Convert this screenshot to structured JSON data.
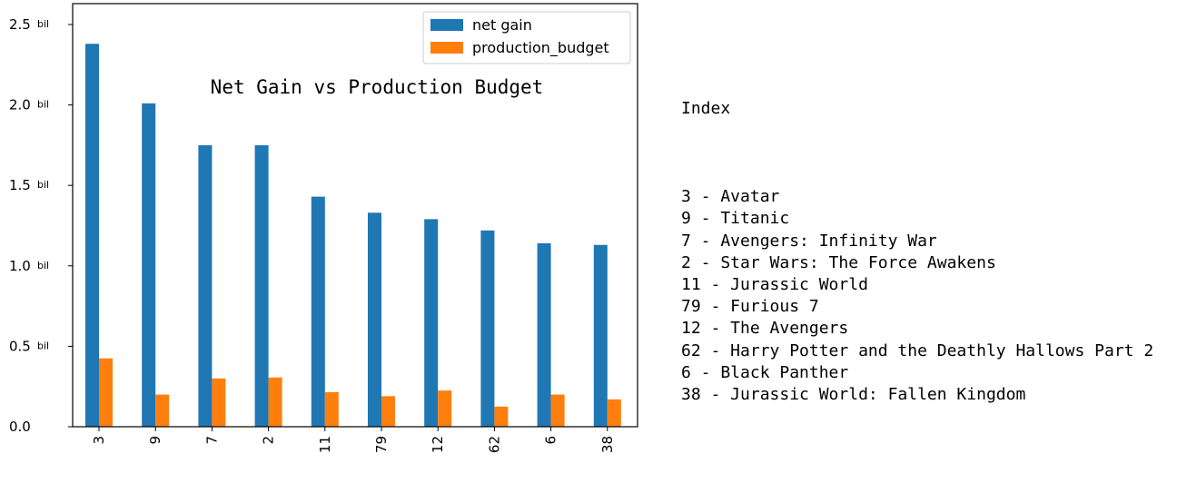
{
  "chart_data": {
    "type": "bar",
    "title": "Net Gain vs Production Budget",
    "categories": [
      "3",
      "9",
      "7",
      "2",
      "11",
      "79",
      "12",
      "62",
      "6",
      "38"
    ],
    "series": [
      {
        "name": "net gain",
        "color": "#1f77b4",
        "values": [
          2.38,
          2.01,
          1.75,
          1.75,
          1.43,
          1.33,
          1.29,
          1.22,
          1.14,
          1.13
        ]
      },
      {
        "name": "production_budget",
        "color": "#ff7f0e",
        "values": [
          0.425,
          0.2,
          0.3,
          0.306,
          0.215,
          0.19,
          0.225,
          0.125,
          0.2,
          0.17
        ]
      }
    ],
    "yticks": [
      {
        "value": 0.0,
        "label": "0.0",
        "unit": ""
      },
      {
        "value": 0.5,
        "label": "0.5",
        "unit": "bil"
      },
      {
        "value": 1.0,
        "label": "1.0",
        "unit": "bil"
      },
      {
        "value": 1.5,
        "label": "1.5",
        "unit": "bil"
      },
      {
        "value": 2.0,
        "label": "2.0",
        "unit": "bil"
      },
      {
        "value": 2.5,
        "label": "2.5",
        "unit": "bil"
      }
    ],
    "ylim": [
      0,
      2.5
    ],
    "xlabel": "",
    "ylabel": "",
    "legend_position": "top-right",
    "grid": false
  },
  "index": {
    "title": "Index",
    "items": [
      "3 - Avatar",
      "9 - Titanic",
      "7 - Avengers: Infinity War",
      "2 - Star Wars: The Force Awakens",
      "11 - Jurassic World",
      "79 - Furious 7",
      "12 - The Avengers",
      "62 - Harry Potter and the Deathly Hallows Part 2",
      "6 - Black Panther",
      "38 - Jurassic World: Fallen Kingdom"
    ]
  }
}
